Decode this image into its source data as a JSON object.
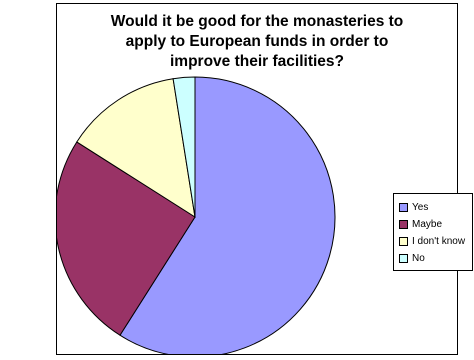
{
  "chart_data": {
    "type": "pie",
    "title": "Would it be good for the monasteries to\napply to European funds in order to\nimprove their facilities?",
    "categories": [
      "Yes",
      "Maybe",
      "I don't know",
      "No"
    ],
    "values": [
      59,
      25,
      13.5,
      2.5
    ],
    "colors": [
      "#9999FF",
      "#993366",
      "#FFFFCC",
      "#CCFFFF"
    ],
    "legend_position": "right",
    "start_angle": "12 o'clock",
    "direction": "clockwise"
  }
}
